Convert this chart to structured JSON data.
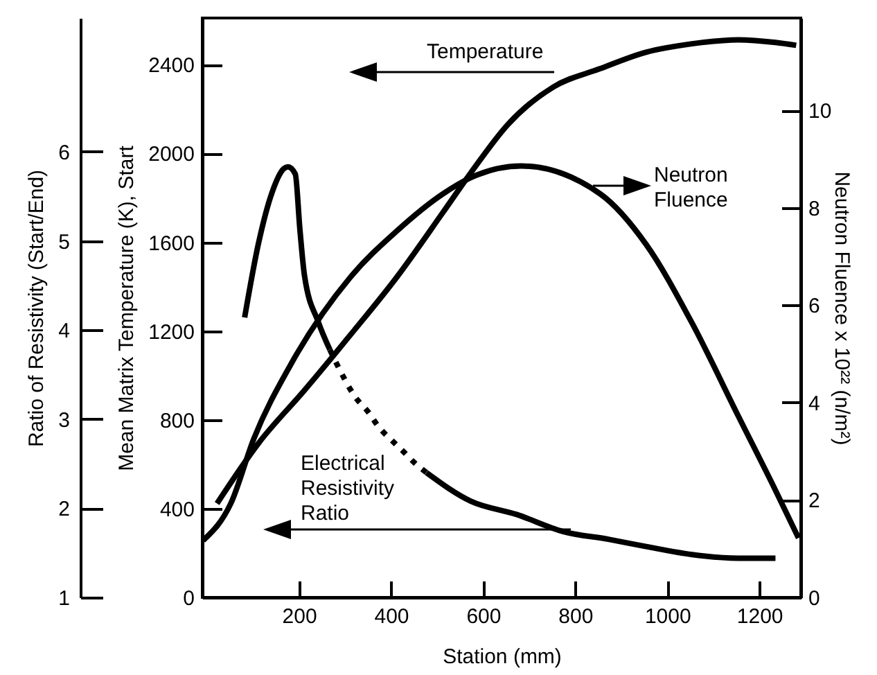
{
  "chart_data": {
    "type": "line",
    "xlabel": "Station (mm)",
    "ylabel": "Mean Matrix Temperature (K), Start",
    "y2label": "Neutron Fluence x 10²² (n/m²)",
    "y3label": "Ratio of Resistivity (Start/End)",
    "annotations": [
      "Temperature",
      "Neutron Fluence",
      "Electrical Resistivity Ratio"
    ],
    "xlim": [
      -10,
      1290
    ],
    "xticks": [
      200,
      400,
      600,
      800,
      1000,
      1200
    ],
    "ylim": [
      0,
      2610
    ],
    "yticks": [
      0,
      400,
      800,
      1200,
      1600,
      2000,
      2400
    ],
    "y2lim": [
      0,
      11.9
    ],
    "y2ticks": [
      0,
      2,
      4,
      6,
      8,
      10
    ],
    "y3lim": [
      1,
      7.5
    ],
    "y3ticks": [
      1,
      2,
      3,
      4,
      5,
      6
    ],
    "series": [
      {
        "color": "#000000",
        "axis": "y",
        "x": [
          22,
          112,
          212,
          312,
          413,
          513,
          573,
          654,
          753,
          853,
          954,
          1054,
          1154,
          1235,
          1280
        ],
        "values": [
          423,
          694,
          933,
          1183,
          1444,
          1735,
          1912,
          2131,
          2300,
          2381,
          2456,
          2494,
          2512,
          2500,
          2487
        ]
      },
      {
        "color": "#000000",
        "axis": "y2",
        "x": [
          -8,
          52,
          102,
          182,
          312,
          413,
          513,
          573,
          683,
          854,
          954,
          1054,
          1154,
          1235,
          1285
        ],
        "values": [
          1.17,
          1.93,
          3.26,
          4.78,
          6.58,
          7.53,
          8.29,
          8.62,
          8.86,
          8.29,
          7.25,
          5.63,
          3.73,
          2.2,
          1.22
        ]
      },
      {
        "color": "#000000",
        "axis": "y3",
        "x": [
          82,
          112,
          142,
          167,
          176,
          192,
          202,
          212,
          242,
          267
        ],
        "values": [
          4.14,
          4.97,
          5.55,
          5.81,
          5.83,
          5.75,
          5.13,
          4.61,
          4.09,
          3.78
        ]
      },
      {
        "color": "#000000",
        "axis": "y3",
        "line_style": "dotted",
        "x": [
          267,
          282,
          322,
          352,
          372,
          402,
          428,
          453,
          477
        ],
        "values": [
          3.78,
          3.62,
          3.25,
          3.07,
          2.92,
          2.76,
          2.63,
          2.5,
          2.4
        ]
      },
      {
        "color": "#000000",
        "axis": "y3",
        "x": [
          477,
          573,
          673,
          773,
          874,
          954,
          1054,
          1154,
          1235
        ],
        "values": [
          2.4,
          2.08,
          1.93,
          1.74,
          1.65,
          1.57,
          1.48,
          1.44,
          1.44
        ]
      }
    ]
  }
}
